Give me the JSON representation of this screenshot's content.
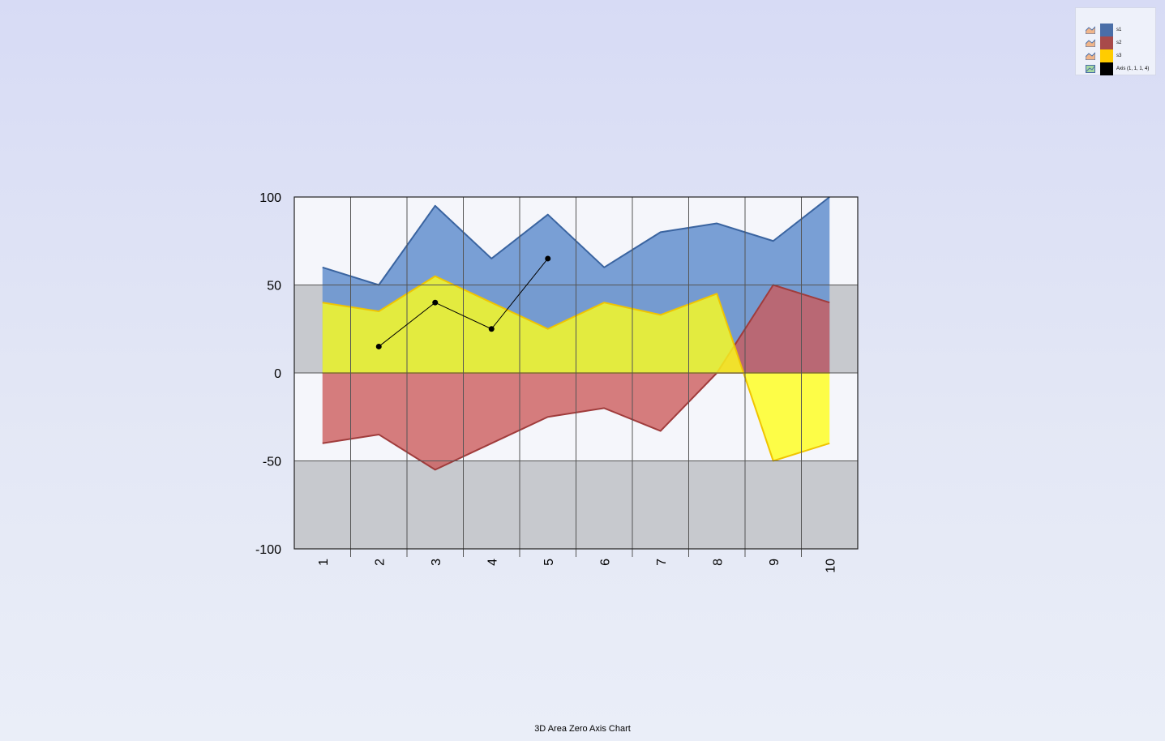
{
  "footer": {
    "title": "3D Area Zero Axis Chart"
  },
  "legend": {
    "items": [
      {
        "label": "s1",
        "color": "#4a6ea8",
        "icon": "area-chart-icon"
      },
      {
        "label": "s2",
        "color": "#a84a4a",
        "icon": "area-chart-icon"
      },
      {
        "label": "s3",
        "color": "#ffcc00",
        "icon": "area-chart-icon"
      },
      {
        "label": "Axis (1, 1, 1, 4)",
        "color": "#000000",
        "icon": "line-chart-icon"
      }
    ]
  },
  "chart_data": {
    "type": "area",
    "categories": [
      "1",
      "2",
      "3",
      "4",
      "5",
      "6",
      "7",
      "8",
      "9",
      "10"
    ],
    "ylim": [
      -100,
      100
    ],
    "yticks": [
      "100",
      "50",
      "0",
      "-50",
      "-100"
    ],
    "bands": [
      {
        "from": 50,
        "to": 0,
        "color": "#c7c9ce"
      },
      {
        "from": -50,
        "to": -100,
        "color": "#c7c9ce"
      }
    ],
    "grid": true,
    "series": [
      {
        "name": "s1",
        "fill": "#6b96d0",
        "stroke": "#3a64a0",
        "opacity": 0.9,
        "values": [
          60,
          50,
          95,
          65,
          90,
          60,
          80,
          85,
          75,
          100
        ]
      },
      {
        "name": "s2",
        "fill": "#cc5a5a",
        "stroke": "#a03c3c",
        "opacity": 0.78,
        "values": [
          -40,
          -35,
          -55,
          -40,
          -25,
          -20,
          -33,
          0,
          50,
          40
        ]
      },
      {
        "name": "s3",
        "fill": "#ffff1a",
        "stroke": "#f0c400",
        "opacity": 0.8,
        "values": [
          40,
          35,
          55,
          40,
          25,
          40,
          33,
          45,
          -50,
          -40
        ]
      }
    ],
    "line": {
      "name": "Axis (1, 1, 1, 4)",
      "color": "#000000",
      "points": [
        [
          2,
          15
        ],
        [
          3,
          40
        ],
        [
          4,
          25
        ],
        [
          5,
          65
        ]
      ]
    }
  }
}
